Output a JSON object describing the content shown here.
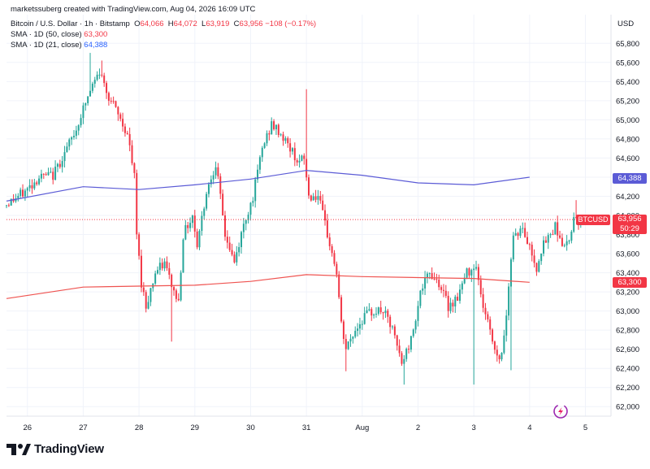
{
  "header": {
    "credit": "marketssuberg created with TradingView.com, Aug 04, 2026 16:09 UTC",
    "symbol_line": "Bitcoin / U.S. Dollar · 1h · Bitstamp",
    "o_label": "O",
    "o_value": "64,066",
    "h_label": "H",
    "h_value": "64,072",
    "l_label": "L",
    "l_value": "63,919",
    "c_label": "C",
    "c_value": "63,956",
    "change": "−108 (−0.17%)",
    "sma50_label": "SMA · 1D (50, close)",
    "sma50_value": "63,300",
    "sma21_label": "SMA · 1D (21, close)",
    "sma21_value": "64,388"
  },
  "price_axis": {
    "currency": "USD",
    "sma21_tag": "64,388",
    "sma50_tag": "63,300",
    "symbol_tag": "BTCUSD",
    "last_price": "63,956",
    "countdown": "50:29"
  },
  "brand": {
    "name": "TradingView"
  },
  "colors": {
    "up": "#26a69a",
    "down": "#f23645",
    "sma21": "#5b5bd6",
    "sma50": "#ef5350",
    "grid": "#f0f3fa"
  },
  "chart_data": {
    "type": "candlestick",
    "title": "Bitcoin / U.S. Dollar · 1h · Bitstamp",
    "ylim": [
      61900,
      66100
    ],
    "y_ticks": [
      "62,000",
      "62,200",
      "62,400",
      "62,600",
      "62,800",
      "63,000",
      "63,200",
      "63,400",
      "63,600",
      "63,800",
      "64,000",
      "64,200",
      "64,400",
      "64,600",
      "64,800",
      "65,000",
      "65,200",
      "65,400",
      "65,600",
      "65,800"
    ],
    "x_ticks": [
      "26",
      "27",
      "28",
      "29",
      "30",
      "31",
      "Aug",
      "2",
      "3",
      "4",
      "5"
    ],
    "x_tick_hours": [
      0,
      24,
      48,
      72,
      96,
      120,
      144,
      168,
      192,
      216,
      240
    ],
    "x_start_hour": -9,
    "x_end_hour": 251,
    "price_path": [
      [
        -9,
        64100
      ],
      [
        0,
        64250
      ],
      [
        6,
        64400
      ],
      [
        12,
        64420
      ],
      [
        18,
        64700
      ],
      [
        22,
        64900
      ],
      [
        24,
        65050
      ],
      [
        28,
        65300
      ],
      [
        32,
        65500
      ],
      [
        36,
        65250
      ],
      [
        40,
        65050
      ],
      [
        44,
        64850
      ],
      [
        47,
        64400
      ],
      [
        48,
        63800
      ],
      [
        50,
        63300
      ],
      [
        52,
        63050
      ],
      [
        56,
        63400
      ],
      [
        60,
        63500
      ],
      [
        64,
        63200
      ],
      [
        66,
        63100
      ],
      [
        68,
        63800
      ],
      [
        72,
        64000
      ],
      [
        74,
        63700
      ],
      [
        78,
        64250
      ],
      [
        82,
        64550
      ],
      [
        86,
        63800
      ],
      [
        90,
        63500
      ],
      [
        94,
        63900
      ],
      [
        98,
        64200
      ],
      [
        102,
        64700
      ],
      [
        106,
        64950
      ],
      [
        110,
        64850
      ],
      [
        114,
        64700
      ],
      [
        118,
        64550
      ],
      [
        120,
        64600
      ],
      [
        122,
        64200
      ],
      [
        126,
        64200
      ],
      [
        130,
        63800
      ],
      [
        134,
        63400
      ],
      [
        136,
        62850
      ],
      [
        138,
        62600
      ],
      [
        142,
        62800
      ],
      [
        146,
        62950
      ],
      [
        150,
        63000
      ],
      [
        154,
        63000
      ],
      [
        158,
        62800
      ],
      [
        162,
        62450
      ],
      [
        166,
        62700
      ],
      [
        170,
        63200
      ],
      [
        174,
        63400
      ],
      [
        178,
        63300
      ],
      [
        182,
        63050
      ],
      [
        186,
        63150
      ],
      [
        190,
        63400
      ],
      [
        194,
        63500
      ],
      [
        196,
        63150
      ],
      [
        200,
        62800
      ],
      [
        202,
        62600
      ],
      [
        204,
        62500
      ],
      [
        206,
        62700
      ],
      [
        208,
        63300
      ],
      [
        210,
        63800
      ],
      [
        214,
        63850
      ],
      [
        218,
        63600
      ],
      [
        220,
        63450
      ],
      [
        222,
        63650
      ],
      [
        226,
        63800
      ],
      [
        228,
        63900
      ],
      [
        232,
        63650
      ],
      [
        234,
        63750
      ],
      [
        236,
        64000
      ],
      [
        238,
        63956
      ]
    ],
    "wick_extremes": [
      [
        27,
        65700
      ],
      [
        32,
        65620
      ],
      [
        62,
        62680
      ],
      [
        120,
        65320
      ],
      [
        137,
        62370
      ],
      [
        162,
        62230
      ],
      [
        192,
        62230
      ],
      [
        208,
        62380
      ],
      [
        236,
        64160
      ]
    ],
    "series": [
      {
        "name": "SMA · 1D (21, close)",
        "points": [
          [
            -9,
            64150
          ],
          [
            24,
            64300
          ],
          [
            48,
            64270
          ],
          [
            72,
            64320
          ],
          [
            96,
            64380
          ],
          [
            120,
            64470
          ],
          [
            144,
            64420
          ],
          [
            168,
            64340
          ],
          [
            192,
            64320
          ],
          [
            216,
            64400
          ]
        ]
      },
      {
        "name": "SMA · 1D (50, close)",
        "points": [
          [
            -9,
            63130
          ],
          [
            24,
            63250
          ],
          [
            48,
            63260
          ],
          [
            72,
            63270
          ],
          [
            96,
            63310
          ],
          [
            120,
            63380
          ],
          [
            144,
            63360
          ],
          [
            168,
            63350
          ],
          [
            192,
            63340
          ],
          [
            216,
            63300
          ]
        ]
      }
    ],
    "last_price": 63956
  }
}
